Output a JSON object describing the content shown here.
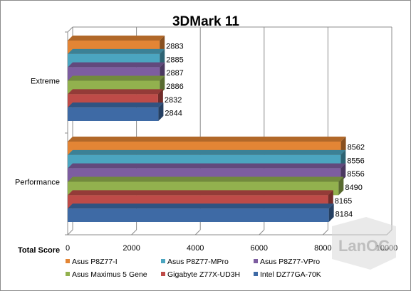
{
  "chart_data": {
    "type": "bar",
    "orientation": "horizontal",
    "title": "3DMark 11",
    "xlabel": "Total Score",
    "xlim": [
      0,
      10000
    ],
    "xticks": [
      0,
      2000,
      4000,
      6000,
      8000,
      10000
    ],
    "categories": [
      "Extreme",
      "Performance"
    ],
    "legend_position": "bottom",
    "series": [
      {
        "name": "Asus P8Z77-I",
        "color": "#E38535",
        "values": [
          2883,
          8562
        ]
      },
      {
        "name": "Asus P8Z77-MPro",
        "color": "#4BA5C0",
        "values": [
          2885,
          8556
        ]
      },
      {
        "name": "Asus P8Z77-VPro",
        "color": "#7D5DA0",
        "values": [
          2887,
          8556
        ]
      },
      {
        "name": "Asus Maximus 5 Gene",
        "color": "#92B14E",
        "values": [
          2886,
          8490
        ]
      },
      {
        "name": "Gigabyte Z77X-UD3H",
        "color": "#BE4B48",
        "values": [
          2832,
          8165
        ]
      },
      {
        "name": "Intel DZ77GA-70K",
        "color": "#3E6AA5",
        "values": [
          2844,
          8184
        ]
      }
    ]
  },
  "watermark": {
    "text": "LanOC"
  }
}
